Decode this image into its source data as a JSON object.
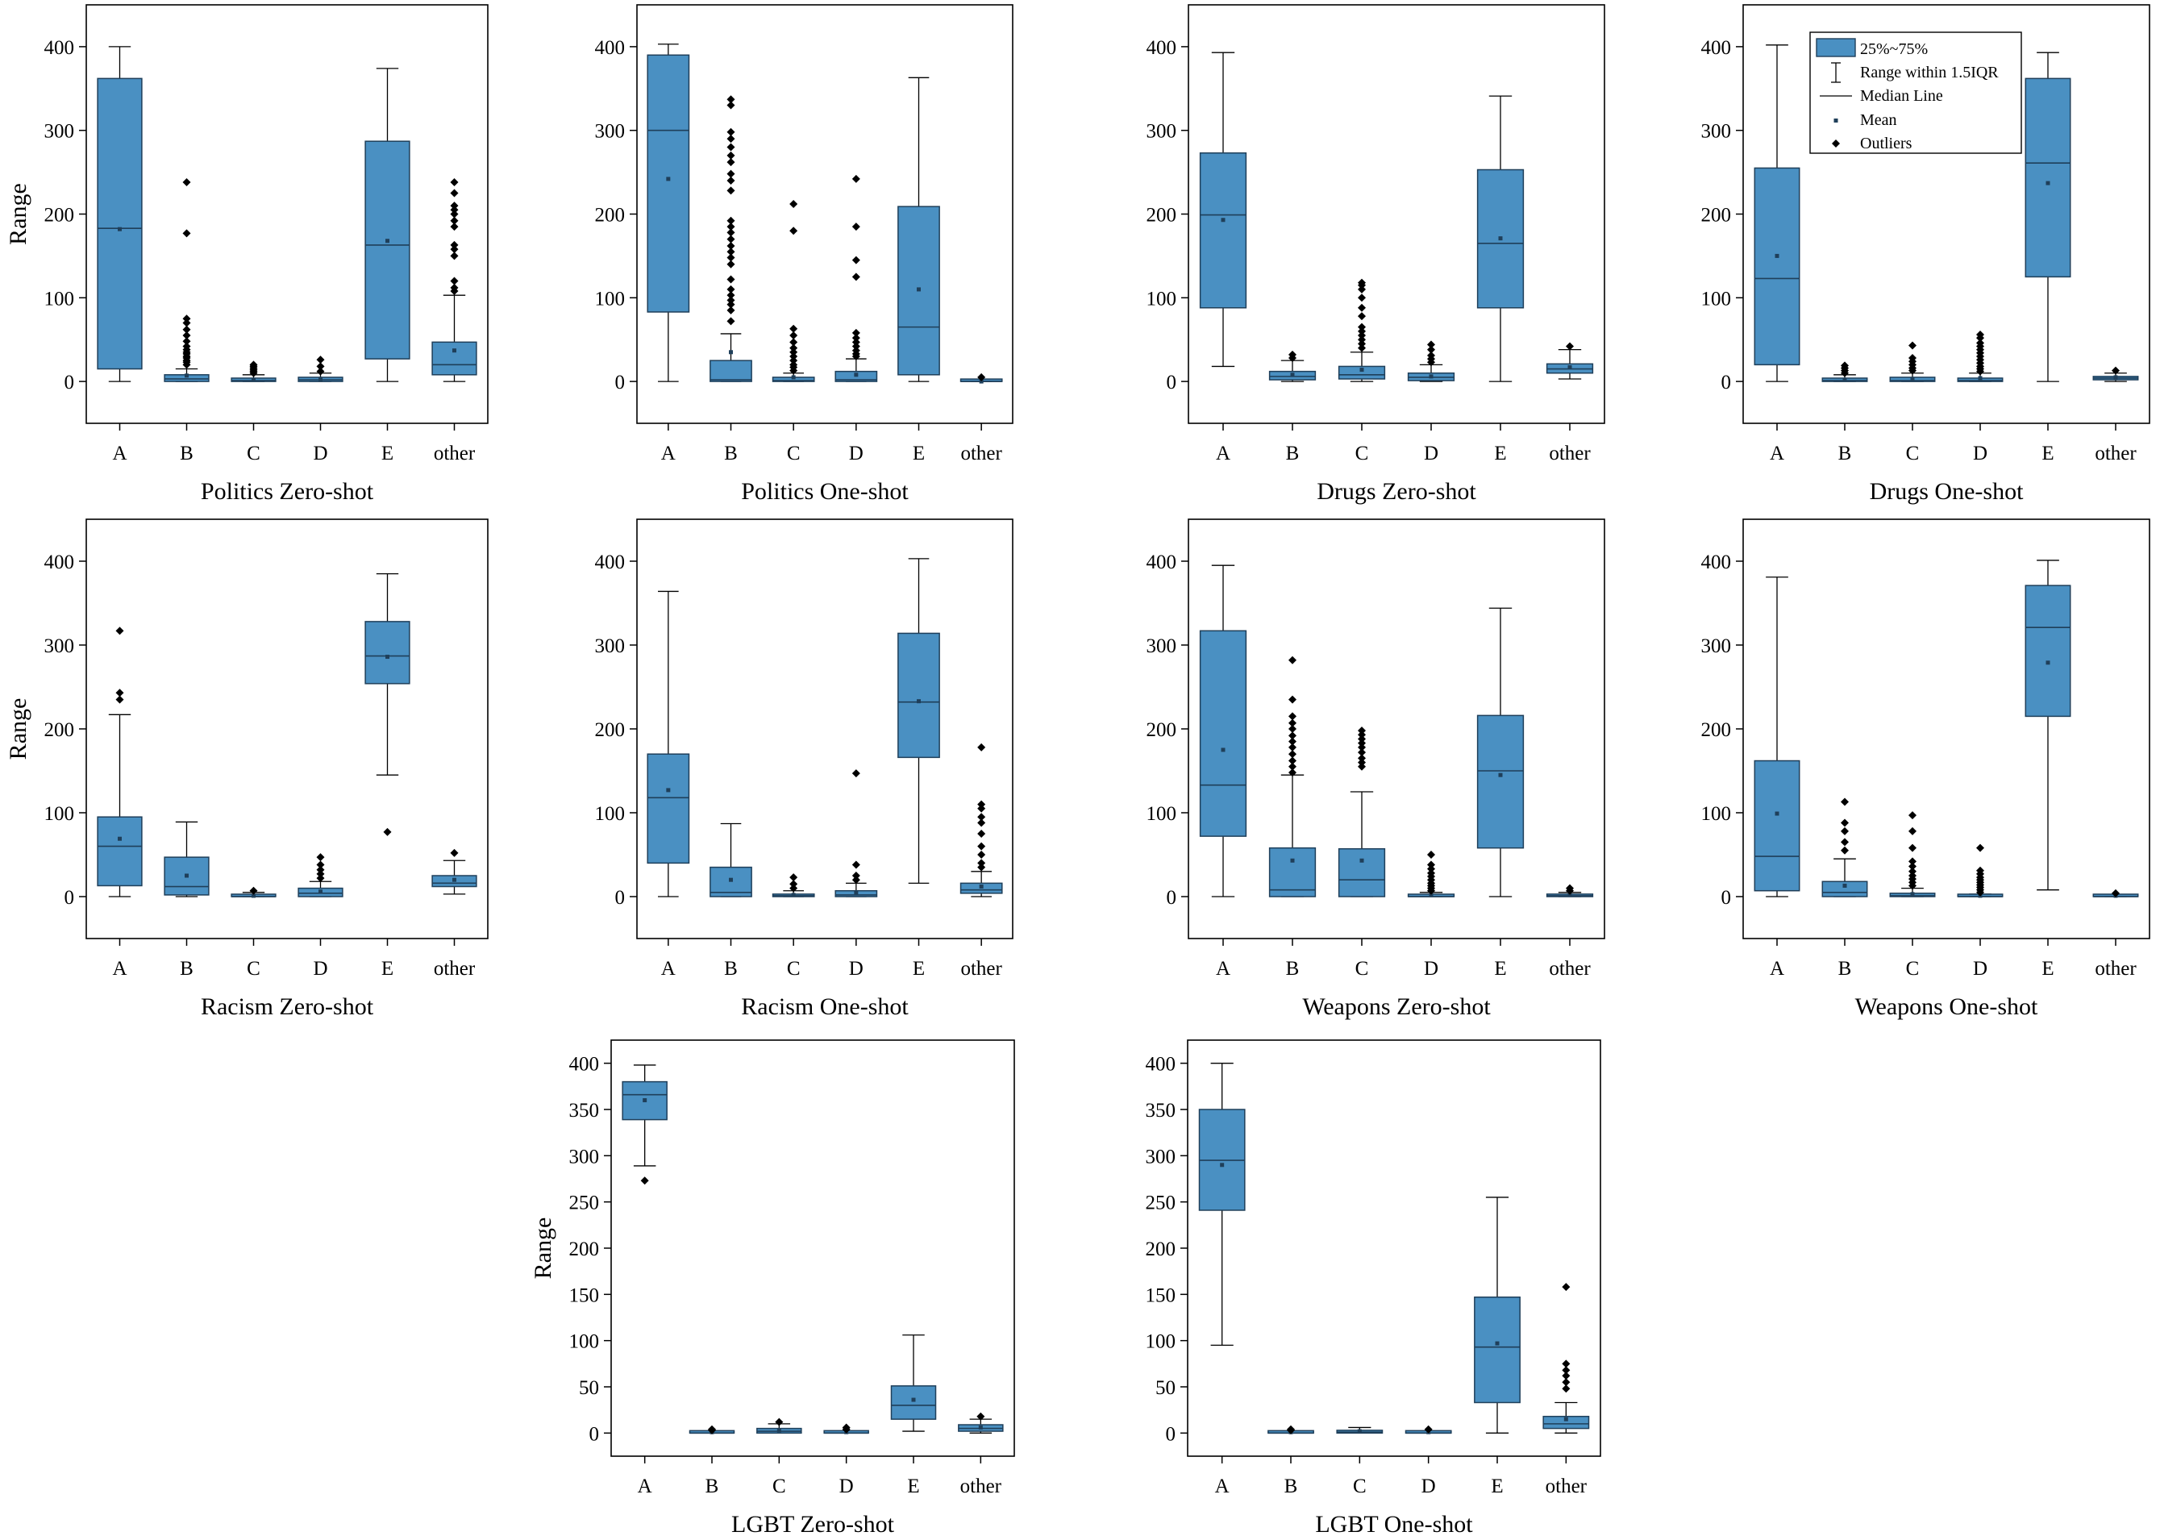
{
  "figure": {
    "legend": {
      "box_label": "25%~75%",
      "whisker_label": "Range within 1.5IQR",
      "median_label": "Median Line",
      "mean_label": "Mean",
      "outlier_label": "Outliers"
    },
    "colors": {
      "box_fill": "#4a90c2",
      "box_stroke": "#1f3f5a",
      "outlier": "#000000",
      "mean": "#1f3f5a"
    }
  },
  "chart_data": [
    {
      "type": "box",
      "title": "Politics Zero-shot",
      "ylabel": "Range",
      "categories": [
        "A",
        "B",
        "C",
        "D",
        "E",
        "other"
      ],
      "ylim": [
        -50,
        450
      ],
      "yticks": [
        0,
        100,
        200,
        300,
        400
      ],
      "boxes": [
        {
          "q1": 15,
          "q3": 362,
          "median": 183,
          "mean": 182,
          "whisker_low": 0,
          "whisker_high": 400,
          "outliers": []
        },
        {
          "q1": 0,
          "q3": 8,
          "median": 3,
          "mean": 7,
          "whisker_low": 0,
          "whisker_high": 15,
          "outliers": [
            20,
            23,
            25,
            28,
            30,
            33,
            35,
            38,
            42,
            48,
            55,
            62,
            70,
            75,
            177,
            238
          ]
        },
        {
          "q1": 0,
          "q3": 4,
          "median": 1,
          "mean": 2,
          "whisker_low": 0,
          "whisker_high": 8,
          "outliers": [
            10,
            12,
            14,
            16,
            18,
            20
          ]
        },
        {
          "q1": 0,
          "q3": 5,
          "median": 2,
          "mean": 3,
          "whisker_low": 0,
          "whisker_high": 10,
          "outliers": [
            12,
            18,
            26
          ]
        },
        {
          "q1": 27,
          "q3": 287,
          "median": 163,
          "mean": 168,
          "whisker_low": 0,
          "whisker_high": 374,
          "outliers": []
        },
        {
          "q1": 8,
          "q3": 47,
          "median": 20,
          "mean": 37,
          "whisker_low": 0,
          "whisker_high": 103,
          "outliers": [
            108,
            112,
            120,
            150,
            158,
            163,
            185,
            192,
            200,
            205,
            210,
            225,
            238
          ]
        }
      ]
    },
    {
      "type": "box",
      "title": "Politics One-shot",
      "ylabel": "",
      "categories": [
        "A",
        "B",
        "C",
        "D",
        "E",
        "other"
      ],
      "ylim": [
        -50,
        450
      ],
      "yticks": [
        0,
        100,
        200,
        300,
        400
      ],
      "boxes": [
        {
          "q1": 83,
          "q3": 390,
          "median": 300,
          "mean": 242,
          "whisker_low": 0,
          "whisker_high": 403,
          "outliers": []
        },
        {
          "q1": 0,
          "q3": 25,
          "median": 2,
          "mean": 35,
          "whisker_low": 0,
          "whisker_high": 57,
          "outliers": [
            72,
            85,
            92,
            97,
            103,
            110,
            122,
            140,
            148,
            155,
            162,
            170,
            178,
            185,
            192,
            228,
            240,
            248,
            262,
            270,
            280,
            290,
            298,
            330,
            337
          ]
        },
        {
          "q1": 0,
          "q3": 5,
          "median": 1,
          "mean": 5,
          "whisker_low": 0,
          "whisker_high": 10,
          "outliers": [
            13,
            17,
            20,
            25,
            30,
            35,
            40,
            47,
            55,
            63,
            180,
            212
          ]
        },
        {
          "q1": 0,
          "q3": 12,
          "median": 2,
          "mean": 8,
          "whisker_low": 0,
          "whisker_high": 27,
          "outliers": [
            30,
            33,
            37,
            42,
            47,
            52,
            58,
            125,
            145,
            185,
            242
          ]
        },
        {
          "q1": 8,
          "q3": 209,
          "median": 65,
          "mean": 110,
          "whisker_low": 0,
          "whisker_high": 363,
          "outliers": []
        },
        {
          "q1": 0,
          "q3": 0,
          "median": 0,
          "mean": 0,
          "whisker_low": 0,
          "whisker_high": 0,
          "outliers": [
            5
          ]
        }
      ]
    },
    {
      "type": "box",
      "title": "Drugs Zero-shot",
      "ylabel": "",
      "categories": [
        "A",
        "B",
        "C",
        "D",
        "E",
        "other"
      ],
      "ylim": [
        -50,
        450
      ],
      "yticks": [
        0,
        100,
        200,
        300,
        400
      ],
      "boxes": [
        {
          "q1": 88,
          "q3": 273,
          "median": 199,
          "mean": 193,
          "whisker_low": 18,
          "whisker_high": 393,
          "outliers": []
        },
        {
          "q1": 2,
          "q3": 12,
          "median": 6,
          "mean": 8,
          "whisker_low": 0,
          "whisker_high": 25,
          "outliers": [
            28,
            32
          ]
        },
        {
          "q1": 3,
          "q3": 18,
          "median": 8,
          "mean": 14,
          "whisker_low": 0,
          "whisker_high": 35,
          "outliers": [
            40,
            45,
            50,
            55,
            60,
            65,
            78,
            88,
            100,
            110,
            115,
            118
          ]
        },
        {
          "q1": 1,
          "q3": 10,
          "median": 5,
          "mean": 6,
          "whisker_low": 0,
          "whisker_high": 20,
          "outliers": [
            23,
            27,
            31,
            38,
            44
          ]
        },
        {
          "q1": 88,
          "q3": 253,
          "median": 165,
          "mean": 171,
          "whisker_low": 0,
          "whisker_high": 341,
          "outliers": []
        },
        {
          "q1": 10,
          "q3": 21,
          "median": 15,
          "mean": 17,
          "whisker_low": 3,
          "whisker_high": 38,
          "outliers": [
            42
          ]
        }
      ]
    },
    {
      "type": "box",
      "title": "Drugs One-shot",
      "ylabel": "",
      "categories": [
        "A",
        "B",
        "C",
        "D",
        "E",
        "other"
      ],
      "ylim": [
        -50,
        450
      ],
      "yticks": [
        0,
        100,
        200,
        300,
        400
      ],
      "boxes": [
        {
          "q1": 20,
          "q3": 255,
          "median": 123,
          "mean": 150,
          "whisker_low": 0,
          "whisker_high": 402,
          "outliers": []
        },
        {
          "q1": 0,
          "q3": 4,
          "median": 1,
          "mean": 2,
          "whisker_low": 0,
          "whisker_high": 8,
          "outliers": [
            10,
            13,
            16,
            19
          ]
        },
        {
          "q1": 0,
          "q3": 5,
          "median": 1,
          "mean": 3,
          "whisker_low": 0,
          "whisker_high": 10,
          "outliers": [
            13,
            16,
            20,
            24,
            28,
            43
          ]
        },
        {
          "q1": 0,
          "q3": 4,
          "median": 1,
          "mean": 4,
          "whisker_low": 0,
          "whisker_high": 10,
          "outliers": [
            12,
            15,
            18,
            22,
            26,
            30,
            34,
            38,
            42,
            46,
            52,
            56
          ]
        },
        {
          "q1": 125,
          "q3": 362,
          "median": 261,
          "mean": 237,
          "whisker_low": 0,
          "whisker_high": 393,
          "outliers": []
        },
        {
          "q1": 2,
          "q3": 6,
          "median": 4,
          "mean": 5,
          "whisker_low": 0,
          "whisker_high": 10,
          "outliers": [
            13
          ]
        }
      ]
    },
    {
      "type": "box",
      "title": "Racism Zero-shot",
      "ylabel": "Range",
      "categories": [
        "A",
        "B",
        "C",
        "D",
        "E",
        "other"
      ],
      "ylim": [
        -50,
        450
      ],
      "yticks": [
        0,
        100,
        200,
        300,
        400
      ],
      "boxes": [
        {
          "q1": 13,
          "q3": 95,
          "median": 60,
          "mean": 69,
          "whisker_low": 0,
          "whisker_high": 217,
          "outliers": [
            235,
            243,
            317
          ]
        },
        {
          "q1": 2,
          "q3": 47,
          "median": 12,
          "mean": 25,
          "whisker_low": 0,
          "whisker_high": 89,
          "outliers": []
        },
        {
          "q1": 0,
          "q3": 2,
          "median": 0,
          "mean": 1,
          "whisker_low": 0,
          "whisker_high": 5,
          "outliers": [
            7
          ]
        },
        {
          "q1": 0,
          "q3": 10,
          "median": 4,
          "mean": 6,
          "whisker_low": 0,
          "whisker_high": 18,
          "outliers": [
            22,
            27,
            32,
            38,
            47
          ]
        },
        {
          "q1": 254,
          "q3": 328,
          "median": 287,
          "mean": 286,
          "whisker_low": 145,
          "whisker_high": 385,
          "outliers": [
            77
          ]
        },
        {
          "q1": 12,
          "q3": 25,
          "median": 16,
          "mean": 20,
          "whisker_low": 3,
          "whisker_high": 43,
          "outliers": [
            52
          ]
        }
      ]
    },
    {
      "type": "box",
      "title": "Racism One-shot",
      "ylabel": "",
      "categories": [
        "A",
        "B",
        "C",
        "D",
        "E",
        "other"
      ],
      "ylim": [
        -50,
        450
      ],
      "yticks": [
        0,
        100,
        200,
        300,
        400
      ],
      "boxes": [
        {
          "q1": 40,
          "q3": 170,
          "median": 118,
          "mean": 127,
          "whisker_low": 0,
          "whisker_high": 364,
          "outliers": []
        },
        {
          "q1": 0,
          "q3": 35,
          "median": 5,
          "mean": 20,
          "whisker_low": 0,
          "whisker_high": 87,
          "outliers": []
        },
        {
          "q1": 0,
          "q3": 3,
          "median": 1,
          "mean": 2,
          "whisker_low": 0,
          "whisker_high": 7,
          "outliers": [
            10,
            15,
            23
          ]
        },
        {
          "q1": 0,
          "q3": 7,
          "median": 2,
          "mean": 5,
          "whisker_low": 0,
          "whisker_high": 16,
          "outliers": [
            20,
            25,
            38,
            147
          ]
        },
        {
          "q1": 166,
          "q3": 314,
          "median": 232,
          "mean": 233,
          "whisker_low": 16,
          "whisker_high": 403,
          "outliers": []
        },
        {
          "q1": 4,
          "q3": 16,
          "median": 8,
          "mean": 12,
          "whisker_low": 0,
          "whisker_high": 30,
          "outliers": [
            35,
            40,
            50,
            60,
            75,
            88,
            95,
            105,
            110,
            178
          ]
        }
      ]
    },
    {
      "type": "box",
      "title": "Weapons Zero-shot",
      "ylabel": "",
      "categories": [
        "A",
        "B",
        "C",
        "D",
        "E",
        "other"
      ],
      "ylim": [
        -50,
        450
      ],
      "yticks": [
        0,
        100,
        200,
        300,
        400
      ],
      "boxes": [
        {
          "q1": 72,
          "q3": 317,
          "median": 133,
          "mean": 175,
          "whisker_low": 0,
          "whisker_high": 395,
          "outliers": []
        },
        {
          "q1": 0,
          "q3": 58,
          "median": 8,
          "mean": 43,
          "whisker_low": 0,
          "whisker_high": 145,
          "outliers": [
            148,
            155,
            162,
            170,
            178,
            185,
            192,
            200,
            207,
            215,
            235,
            282
          ]
        },
        {
          "q1": 0,
          "q3": 57,
          "median": 20,
          "mean": 43,
          "whisker_low": 0,
          "whisker_high": 125,
          "outliers": [
            155,
            160,
            165,
            172,
            178,
            183,
            188,
            193,
            198
          ]
        },
        {
          "q1": 0,
          "q3": 2,
          "median": 0,
          "mean": 2,
          "whisker_low": 0,
          "whisker_high": 5,
          "outliers": [
            7,
            10,
            13,
            16,
            20,
            24,
            28,
            33,
            38,
            50
          ]
        },
        {
          "q1": 58,
          "q3": 216,
          "median": 150,
          "mean": 145,
          "whisker_low": 0,
          "whisker_high": 344,
          "outliers": []
        },
        {
          "q1": 0,
          "q3": 3,
          "median": 1,
          "mean": 2,
          "whisker_low": 0,
          "whisker_high": 5,
          "outliers": [
            7,
            10
          ]
        }
      ]
    },
    {
      "type": "box",
      "title": "Weapons One-shot",
      "ylabel": "",
      "categories": [
        "A",
        "B",
        "C",
        "D",
        "E",
        "other"
      ],
      "ylim": [
        -50,
        450
      ],
      "yticks": [
        0,
        100,
        200,
        300,
        400
      ],
      "boxes": [
        {
          "q1": 7,
          "q3": 162,
          "median": 48,
          "mean": 99,
          "whisker_low": 0,
          "whisker_high": 381,
          "outliers": []
        },
        {
          "q1": 0,
          "q3": 18,
          "median": 5,
          "mean": 13,
          "whisker_low": 0,
          "whisker_high": 45,
          "outliers": [
            55,
            65,
            78,
            88,
            113
          ]
        },
        {
          "q1": 0,
          "q3": 4,
          "median": 1,
          "mean": 3,
          "whisker_low": 0,
          "whisker_high": 10,
          "outliers": [
            13,
            17,
            21,
            25,
            30,
            36,
            42,
            58,
            78,
            97
          ]
        },
        {
          "q1": 0,
          "q3": 1,
          "median": 0,
          "mean": 1,
          "whisker_low": 0,
          "whisker_high": 3,
          "outliers": [
            5,
            8,
            11,
            14,
            17,
            20,
            23,
            27,
            31,
            58
          ]
        },
        {
          "q1": 215,
          "q3": 371,
          "median": 321,
          "mean": 279,
          "whisker_low": 8,
          "whisker_high": 401,
          "outliers": []
        },
        {
          "q1": 0,
          "q3": 1,
          "median": 0,
          "mean": 1,
          "whisker_low": 0,
          "whisker_high": 2,
          "outliers": [
            4
          ]
        }
      ]
    },
    {
      "type": "box",
      "title": "LGBT Zero-shot",
      "ylabel": "Range",
      "categories": [
        "A",
        "B",
        "C",
        "D",
        "E",
        "other"
      ],
      "ylim": [
        -25,
        425
      ],
      "yticks": [
        0,
        50,
        100,
        150,
        200,
        250,
        300,
        350,
        400
      ],
      "boxes": [
        {
          "q1": 339,
          "q3": 380,
          "median": 366,
          "mean": 360,
          "whisker_low": 289,
          "whisker_high": 398,
          "outliers": [
            273
          ]
        },
        {
          "q1": 0,
          "q3": 1,
          "median": 0,
          "mean": 1,
          "whisker_low": 0,
          "whisker_high": 2,
          "outliers": [
            3,
            4
          ]
        },
        {
          "q1": 0,
          "q3": 5,
          "median": 2,
          "mean": 3,
          "whisker_low": 0,
          "whisker_high": 10,
          "outliers": [
            12
          ]
        },
        {
          "q1": 0,
          "q3": 1,
          "median": 0,
          "mean": 1,
          "whisker_low": 0,
          "whisker_high": 2,
          "outliers": [
            4,
            6
          ]
        },
        {
          "q1": 15,
          "q3": 51,
          "median": 30,
          "mean": 36,
          "whisker_low": 2,
          "whisker_high": 106,
          "outliers": []
        },
        {
          "q1": 2,
          "q3": 9,
          "median": 5,
          "mean": 6,
          "whisker_low": 0,
          "whisker_high": 15,
          "outliers": [
            18
          ]
        }
      ]
    },
    {
      "type": "box",
      "title": "LGBT One-shot",
      "ylabel": "",
      "categories": [
        "A",
        "B",
        "C",
        "D",
        "E",
        "other"
      ],
      "ylim": [
        -25,
        425
      ],
      "yticks": [
        0,
        50,
        100,
        150,
        200,
        250,
        300,
        350,
        400
      ],
      "boxes": [
        {
          "q1": 241,
          "q3": 350,
          "median": 295,
          "mean": 290,
          "whisker_low": 95,
          "whisker_high": 400,
          "outliers": []
        },
        {
          "q1": 0,
          "q3": 1,
          "median": 0,
          "mean": 1,
          "whisker_low": 0,
          "whisker_high": 2,
          "outliers": [
            3,
            4
          ]
        },
        {
          "q1": 0,
          "q3": 3,
          "median": 1,
          "mean": 2,
          "whisker_low": 0,
          "whisker_high": 6,
          "outliers": []
        },
        {
          "q1": 0,
          "q3": 1,
          "median": 0,
          "mean": 1,
          "whisker_low": 0,
          "whisker_high": 2,
          "outliers": [
            4
          ]
        },
        {
          "q1": 33,
          "q3": 147,
          "median": 93,
          "mean": 97,
          "whisker_low": 0,
          "whisker_high": 255,
          "outliers": []
        },
        {
          "q1": 5,
          "q3": 18,
          "median": 10,
          "mean": 15,
          "whisker_low": 0,
          "whisker_high": 33,
          "outliers": [
            48,
            55,
            62,
            68,
            75,
            158
          ]
        }
      ]
    }
  ]
}
